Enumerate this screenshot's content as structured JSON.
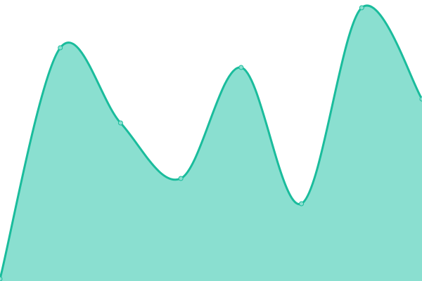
{
  "chart_data": {
    "type": "area",
    "x": [
      0,
      1,
      2,
      3,
      4,
      5,
      6,
      7
    ],
    "values": [
      3,
      332,
      225,
      146,
      304,
      110,
      389,
      259
    ],
    "ylim": [
      0,
      400
    ],
    "grid": false,
    "axes": false,
    "curve": "smooth",
    "colors": {
      "line": "#1abc9c",
      "fill": "#8adfd0",
      "marker": "#8adfd0"
    }
  }
}
